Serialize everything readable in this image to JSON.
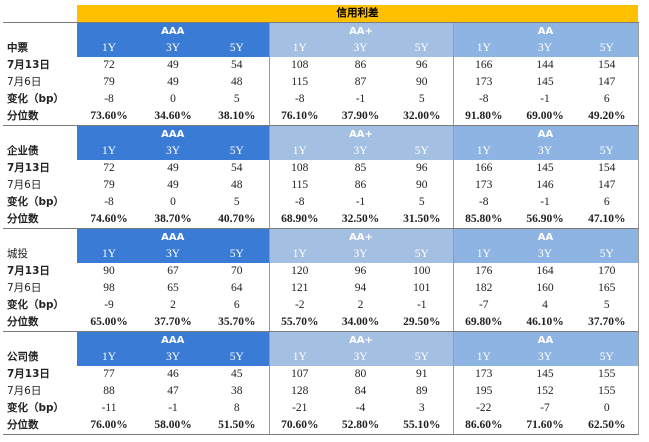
{
  "title": "信用利差",
  "ratings": [
    "AAA",
    "AA+",
    "AA"
  ],
  "tenors": [
    "1Y",
    "3Y",
    "5Y"
  ],
  "sections": [
    {
      "name": "中票",
      "name_bold": true,
      "rows": [
        {
          "label": "7月13日",
          "bold": true,
          "values": [
            "72",
            "49",
            "54",
            "108",
            "86",
            "96",
            "166",
            "144",
            "154"
          ]
        },
        {
          "label": "7月6日",
          "bold": false,
          "values": [
            "79",
            "49",
            "48",
            "115",
            "87",
            "90",
            "173",
            "145",
            "147"
          ]
        },
        {
          "label": "变化（bp）",
          "bold": true,
          "values": [
            "-8",
            "0",
            "5",
            "-8",
            "-1",
            "5",
            "-8",
            "-1",
            "6"
          ]
        },
        {
          "label": "分位数",
          "bold": true,
          "percent": true,
          "values": [
            "73.60%",
            "34.60%",
            "38.10%",
            "76.10%",
            "37.90%",
            "32.00%",
            "91.80%",
            "69.00%",
            "49.20%"
          ]
        }
      ]
    },
    {
      "name": "企业债",
      "name_bold": true,
      "rows": [
        {
          "label": "7月13日",
          "bold": true,
          "values": [
            "72",
            "49",
            "54",
            "108",
            "85",
            "96",
            "166",
            "145",
            "154"
          ]
        },
        {
          "label": "7月6日",
          "bold": false,
          "values": [
            "79",
            "49",
            "48",
            "115",
            "86",
            "90",
            "173",
            "146",
            "147"
          ]
        },
        {
          "label": "变化（bp）",
          "bold": true,
          "values": [
            "-8",
            "0",
            "5",
            "-8",
            "-1",
            "5",
            "-8",
            "-1",
            "6"
          ]
        },
        {
          "label": "分位数",
          "bold": true,
          "percent": true,
          "values": [
            "74.60%",
            "38.70%",
            "40.70%",
            "68.90%",
            "32.50%",
            "31.50%",
            "85.80%",
            "56.90%",
            "47.10%"
          ]
        }
      ]
    },
    {
      "name": "城投",
      "name_bold": false,
      "rows": [
        {
          "label": "7月13日",
          "bold": true,
          "values": [
            "90",
            "67",
            "70",
            "120",
            "96",
            "100",
            "176",
            "164",
            "170"
          ]
        },
        {
          "label": "7月6日",
          "bold": false,
          "values": [
            "98",
            "65",
            "64",
            "121",
            "94",
            "101",
            "182",
            "160",
            "165"
          ]
        },
        {
          "label": "变化（bp）",
          "bold": true,
          "values": [
            "-9",
            "2",
            "6",
            "-2",
            "2",
            "-1",
            "-7",
            "4",
            "5"
          ]
        },
        {
          "label": "分位数",
          "bold": true,
          "percent": true,
          "values": [
            "65.00%",
            "37.70%",
            "35.70%",
            "55.70%",
            "34.00%",
            "29.50%",
            "69.80%",
            "46.10%",
            "37.70%"
          ]
        }
      ]
    },
    {
      "name": "公司债",
      "name_bold": true,
      "rows": [
        {
          "label": "7月13日",
          "bold": true,
          "values": [
            "77",
            "46",
            "45",
            "107",
            "80",
            "91",
            "173",
            "145",
            "155"
          ]
        },
        {
          "label": "7月6日",
          "bold": false,
          "values": [
            "88",
            "47",
            "38",
            "128",
            "84",
            "89",
            "195",
            "152",
            "155"
          ]
        },
        {
          "label": "变化（bp）",
          "bold": true,
          "values": [
            "-11",
            "-1",
            "8",
            "-21",
            "-4",
            "3",
            "-22",
            "-7",
            "0"
          ]
        },
        {
          "label": "分位数",
          "bold": true,
          "percent": true,
          "values": [
            "76.00%",
            "58.00%",
            "51.50%",
            "70.60%",
            "52.80%",
            "55.10%",
            "86.60%",
            "71.60%",
            "62.50%"
          ]
        }
      ]
    }
  ]
}
